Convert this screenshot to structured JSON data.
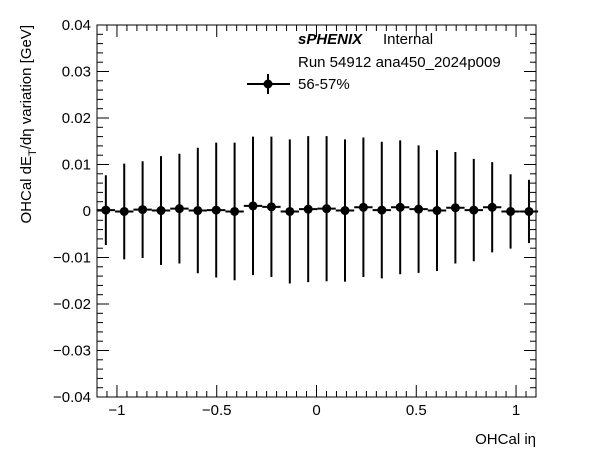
{
  "chart_data": {
    "type": "scatter",
    "xlabel": "OHCal iη",
    "ylabel": "OHCal dE_T/dη variation [GeV]",
    "ylabel_parts": {
      "pre": "OHCal dE",
      "sub": "T",
      "post": "/dη variation [GeV]"
    },
    "xlim": [
      -1.1,
      1.1
    ],
    "ylim": [
      -0.04,
      0.04
    ],
    "x_ticks": [
      -1,
      -0.5,
      0,
      0.5,
      1
    ],
    "x_tick_labels": [
      "−1",
      "−0.5",
      "0",
      "0.5",
      "1"
    ],
    "y_ticks": [
      -0.04,
      -0.03,
      -0.02,
      -0.01,
      0,
      0.01,
      0.02,
      0.03,
      0.04
    ],
    "y_tick_labels": [
      "−0.04",
      "−0.03",
      "−0.02",
      "−0.01",
      "0",
      "0.01",
      "0.02",
      "0.03",
      "0.04"
    ],
    "grid": false,
    "legend_position": "top-center",
    "annotations": {
      "experiment": "sPHENIX",
      "status": "Internal",
      "run_info": "Run 54912 ana450_2024p009"
    },
    "series": [
      {
        "name": "56-57%",
        "color": "#000000",
        "x": [
          -1.0557,
          -0.9635,
          -0.8714,
          -0.7792,
          -0.687,
          -0.5948,
          -0.5026,
          -0.4104,
          -0.3182,
          -0.226,
          -0.1338,
          -0.0416,
          0.0506,
          0.1428,
          0.235,
          0.3272,
          0.4194,
          0.5116,
          0.6038,
          0.696,
          0.7882,
          0.8804,
          0.9726,
          1.0648
        ],
        "x_err": [
          0.046,
          0.046,
          0.046,
          0.046,
          0.046,
          0.046,
          0.046,
          0.046,
          0.046,
          0.046,
          0.046,
          0.046,
          0.046,
          0.046,
          0.046,
          0.046,
          0.046,
          0.046,
          0.046,
          0.046,
          0.046,
          0.046,
          0.046,
          0.046
        ],
        "y": [
          0.0002,
          -0.0001,
          0.0003,
          0.0001,
          0.0005,
          0.0001,
          0.0002,
          -0.0001,
          0.0011,
          0.0009,
          -0.0001,
          0.0004,
          0.0005,
          0.0001,
          0.0008,
          0.0002,
          0.0008,
          0.0004,
          0.0001,
          0.0007,
          0.0002,
          0.0008,
          -0.0001,
          -0.0001
        ],
        "y_err": [
          0.0075,
          0.0103,
          0.0104,
          0.0117,
          0.0118,
          0.0135,
          0.0145,
          0.0148,
          0.0149,
          0.0151,
          0.0155,
          0.0157,
          0.0156,
          0.0153,
          0.015,
          0.0147,
          0.0144,
          0.0137,
          0.013,
          0.012,
          0.011,
          0.0097,
          0.008,
          0.0068
        ]
      }
    ]
  }
}
